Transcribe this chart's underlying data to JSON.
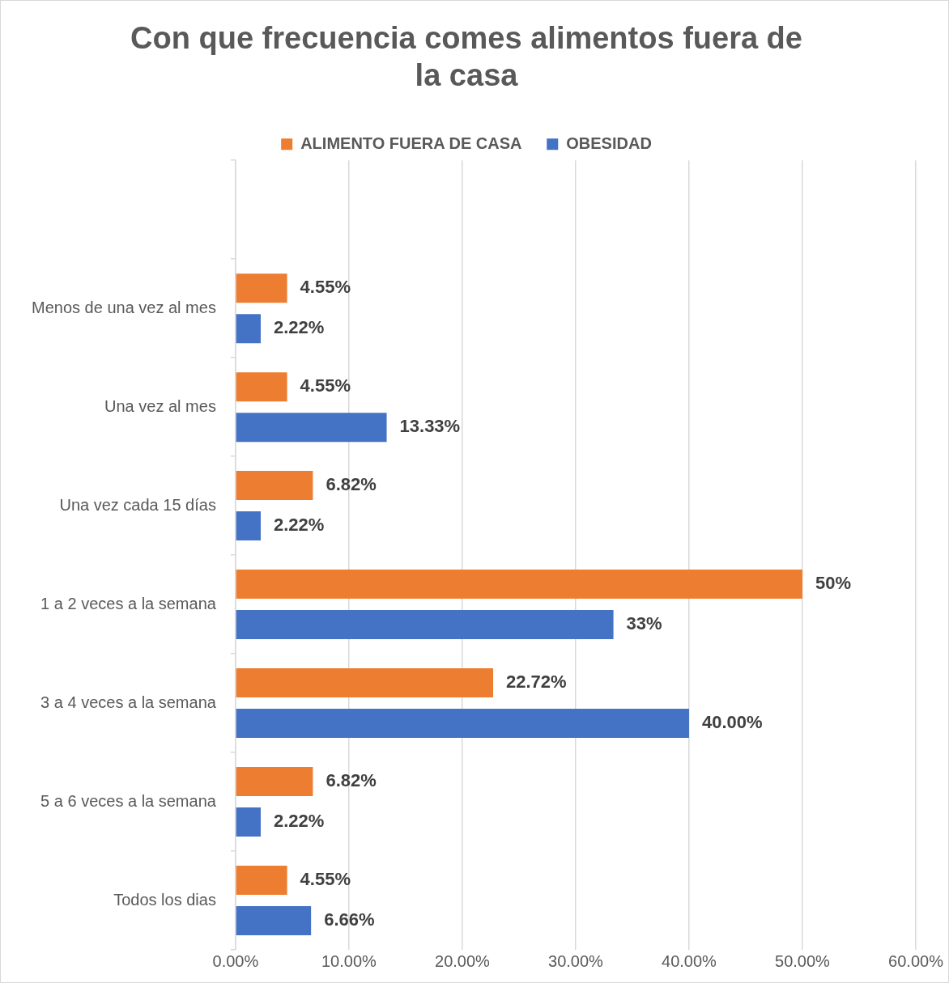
{
  "chart_data": {
    "type": "bar",
    "orientation": "horizontal",
    "title": "Con que frecuencia comes alimentos fuera de la casa",
    "categories": [
      null,
      "Menos de una vez al mes",
      "Una vez al mes",
      "Una vez cada 15 días",
      "1 a 2 veces a la semana",
      "3 a 4 veces a la semana",
      "5 a 6 veces a la semana",
      "Todos los dias"
    ],
    "series": [
      {
        "name": "ALIMENTO FUERA DE CASA",
        "color": "#ed7d31",
        "values": [
          null,
          4.55,
          4.55,
          6.82,
          50,
          22.72,
          6.82,
          4.55
        ],
        "value_labels": [
          null,
          "4.55%",
          "4.55%",
          "6.82%",
          "50%",
          "22.72%",
          "6.82%",
          "4.55%"
        ]
      },
      {
        "name": "OBESIDAD",
        "color": "#4472c4",
        "values": [
          null,
          2.22,
          13.33,
          2.22,
          33.33,
          40.0,
          2.22,
          6.66
        ],
        "value_labels": [
          null,
          "2.22%",
          "13.33%",
          "2.22%",
          "33%",
          "40.00%",
          "2.22%",
          "6.66%"
        ]
      }
    ],
    "xlim": [
      0,
      60
    ],
    "xticks": [
      {
        "value": 0,
        "label": "0.00%"
      },
      {
        "value": 10,
        "label": "10.00%"
      },
      {
        "value": 20,
        "label": "20.00%"
      },
      {
        "value": 30,
        "label": "30.00%"
      },
      {
        "value": 40,
        "label": "40.00%"
      },
      {
        "value": 50,
        "label": "50.00%"
      },
      {
        "value": 60,
        "label": "60.00%"
      }
    ],
    "grid": "x",
    "legend": "top"
  }
}
